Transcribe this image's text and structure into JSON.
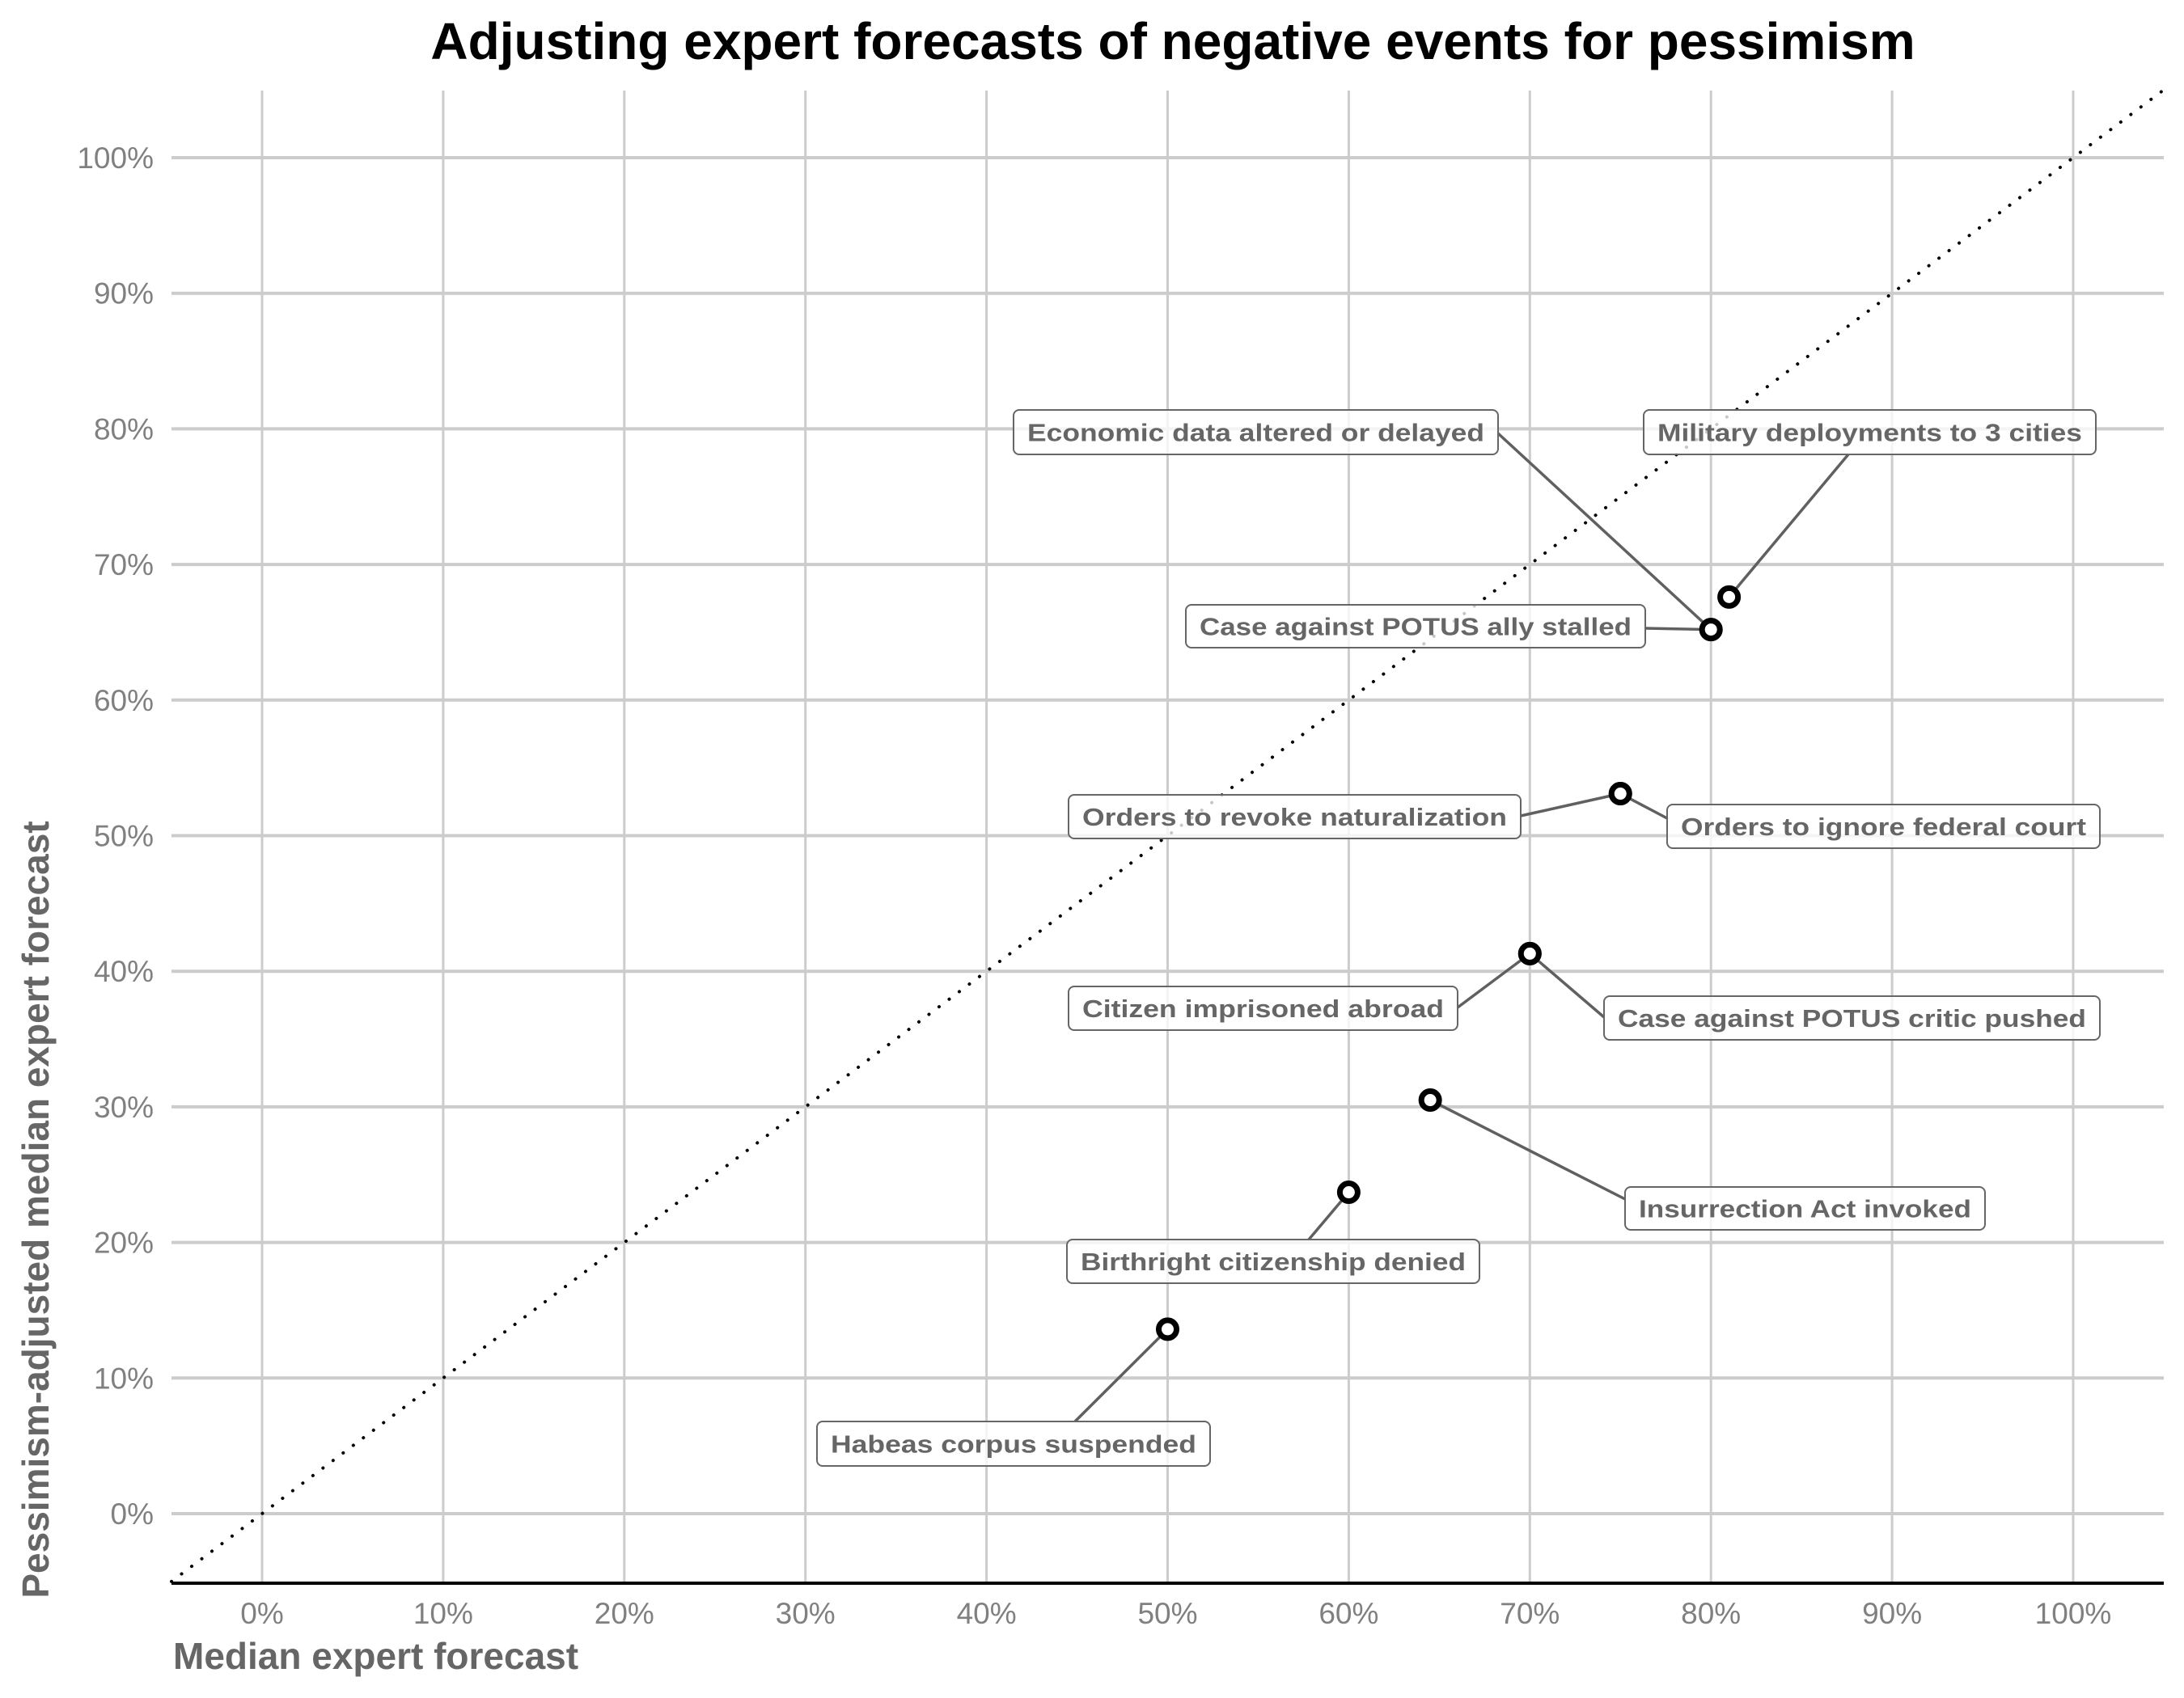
{
  "chart_data": {
    "type": "scatter",
    "title": "Adjusting expert forecasts of negative events for pessimism",
    "xlabel": "Median expert forecast",
    "ylabel": "Pessimism-adjusted median expert forecast",
    "xlim": [
      -5,
      105
    ],
    "ylim": [
      -5,
      105
    ],
    "x_ticks": [
      "0%",
      "10%",
      "20%",
      "30%",
      "40%",
      "50%",
      "60%",
      "70%",
      "80%",
      "90%",
      "100%"
    ],
    "y_ticks": [
      "0%",
      "10%",
      "20%",
      "30%",
      "40%",
      "50%",
      "60%",
      "70%",
      "80%",
      "90%",
      "100%"
    ],
    "grid": true,
    "reference_line": {
      "type": "y=x",
      "style": "dotted",
      "color": "#000000"
    },
    "point_color": "#000000",
    "label_color": "#666666",
    "points": [
      {
        "label": "Economic data altered or delayed",
        "x": 80,
        "y": 65.2
      },
      {
        "label": "Military deployments to 3 cities",
        "x": 81,
        "y": 67.6
      },
      {
        "label": "Case against POTUS ally stalled",
        "x": 80,
        "y": 65.2
      },
      {
        "label": "Orders to revoke naturalization",
        "x": 75,
        "y": 53.1
      },
      {
        "label": "Orders to ignore federal court",
        "x": 75,
        "y": 53.1
      },
      {
        "label": "Citizen imprisoned abroad",
        "x": 70,
        "y": 41.3
      },
      {
        "label": "Case against POTUS critic pushed",
        "x": 70,
        "y": 41.3
      },
      {
        "label": "Insurrection Act invoked",
        "x": 64.5,
        "y": 30.5
      },
      {
        "label": "Birthright citizenship denied",
        "x": 60,
        "y": 23.7
      },
      {
        "label": "Habeas corpus suspended",
        "x": 50,
        "y": 13.6
      }
    ]
  }
}
